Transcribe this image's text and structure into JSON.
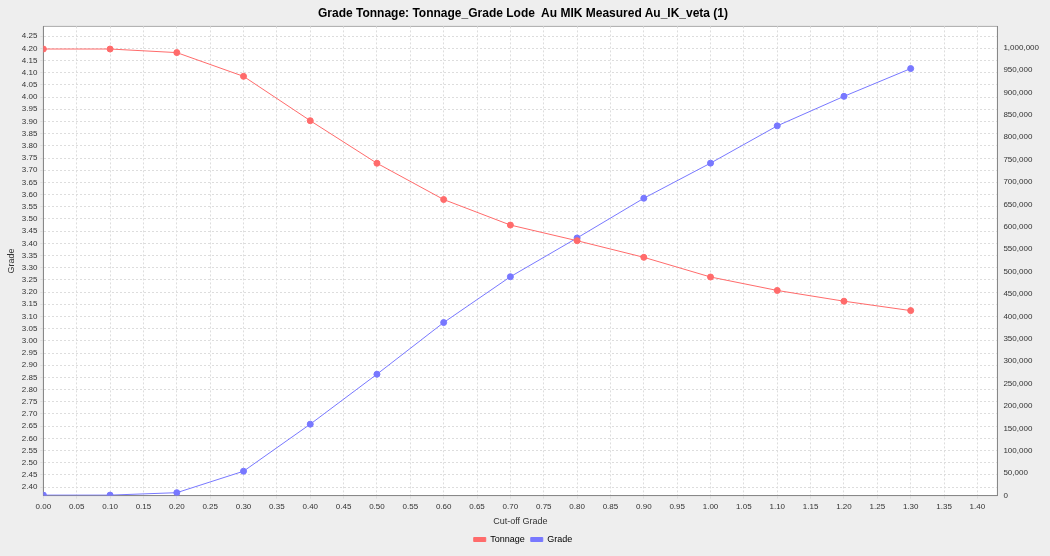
{
  "chart_data": {
    "type": "line",
    "title": "Grade Tonnage: Tonnage_Grade Lode  Au MIK Measured Au_IK_veta (1)",
    "xlabel": "Cut-off Grade",
    "ylabel": "Grade",
    "x": [
      0.0,
      0.1,
      0.2,
      0.3,
      0.4,
      0.5,
      0.6,
      0.7,
      0.8,
      0.9,
      1.0,
      1.1,
      1.2,
      1.3
    ],
    "series": [
      {
        "name": "Tonnage",
        "color": "#ff6b6b",
        "axis": "y2",
        "values": [
          997000,
          997000,
          989000,
          936000,
          837000,
          742000,
          661000,
          604000,
          569000,
          532000,
          488000,
          458000,
          434000,
          413000
        ]
      },
      {
        "name": "Grade",
        "color": "#7878ff",
        "values": [
          2.367,
          2.367,
          2.377,
          2.465,
          2.658,
          2.863,
          3.075,
          3.263,
          3.422,
          3.585,
          3.729,
          3.882,
          4.003,
          4.117
        ]
      }
    ],
    "xlim": [
      0,
      1.43
    ],
    "xticks": [
      {
        "value": 0,
        "label": "0.00"
      },
      {
        "value": 0.05,
        "label": "0.05"
      },
      {
        "value": 0.1,
        "label": "0.10"
      },
      {
        "value": 0.15,
        "label": "0.15"
      },
      {
        "value": 0.2,
        "label": "0.20"
      },
      {
        "value": 0.25,
        "label": "0.25"
      },
      {
        "value": 0.3,
        "label": "0.30"
      },
      {
        "value": 0.35,
        "label": "0.35"
      },
      {
        "value": 0.4,
        "label": "0.40"
      },
      {
        "value": 0.45,
        "label": "0.45"
      },
      {
        "value": 0.5,
        "label": "0.50"
      },
      {
        "value": 0.55,
        "label": "0.55"
      },
      {
        "value": 0.6,
        "label": "0.60"
      },
      {
        "value": 0.65,
        "label": "0.65"
      },
      {
        "value": 0.7,
        "label": "0.70"
      },
      {
        "value": 0.75,
        "label": "0.75"
      },
      {
        "value": 0.8,
        "label": "0.80"
      },
      {
        "value": 0.85,
        "label": "0.85"
      },
      {
        "value": 0.9,
        "label": "0.90"
      },
      {
        "value": 0.95,
        "label": "0.95"
      },
      {
        "value": 1.0,
        "label": "1.00"
      },
      {
        "value": 1.05,
        "label": "1.05"
      },
      {
        "value": 1.1,
        "label": "1.10"
      },
      {
        "value": 1.15,
        "label": "1.15"
      },
      {
        "value": 1.2,
        "label": "1.20"
      },
      {
        "value": 1.25,
        "label": "1.25"
      },
      {
        "value": 1.3,
        "label": "1.30"
      },
      {
        "value": 1.35,
        "label": "1.35"
      },
      {
        "value": 1.4,
        "label": "1.40"
      }
    ],
    "ylim": [
      2.365,
      4.29
    ],
    "yticks": [
      {
        "value": 2.4,
        "label": "2.40"
      },
      {
        "value": 2.45,
        "label": "2.45"
      },
      {
        "value": 2.5,
        "label": "2.50"
      },
      {
        "value": 2.55,
        "label": "2.55"
      },
      {
        "value": 2.6,
        "label": "2.60"
      },
      {
        "value": 2.65,
        "label": "2.65"
      },
      {
        "value": 2.7,
        "label": "2.70"
      },
      {
        "value": 2.75,
        "label": "2.75"
      },
      {
        "value": 2.8,
        "label": "2.80"
      },
      {
        "value": 2.85,
        "label": "2.85"
      },
      {
        "value": 2.9,
        "label": "2.90"
      },
      {
        "value": 2.95,
        "label": "2.95"
      },
      {
        "value": 3.0,
        "label": "3.00"
      },
      {
        "value": 3.05,
        "label": "3.05"
      },
      {
        "value": 3.1,
        "label": "3.10"
      },
      {
        "value": 3.15,
        "label": "3.15"
      },
      {
        "value": 3.2,
        "label": "3.20"
      },
      {
        "value": 3.25,
        "label": "3.25"
      },
      {
        "value": 3.3,
        "label": "3.30"
      },
      {
        "value": 3.35,
        "label": "3.35"
      },
      {
        "value": 3.4,
        "label": "3.40"
      },
      {
        "value": 3.45,
        "label": "3.45"
      },
      {
        "value": 3.5,
        "label": "3.50"
      },
      {
        "value": 3.55,
        "label": "3.55"
      },
      {
        "value": 3.6,
        "label": "3.60"
      },
      {
        "value": 3.65,
        "label": "3.65"
      },
      {
        "value": 3.7,
        "label": "3.70"
      },
      {
        "value": 3.75,
        "label": "3.75"
      },
      {
        "value": 3.8,
        "label": "3.80"
      },
      {
        "value": 3.85,
        "label": "3.85"
      },
      {
        "value": 3.9,
        "label": "3.90"
      },
      {
        "value": 3.95,
        "label": "3.95"
      },
      {
        "value": 4.0,
        "label": "4.00"
      },
      {
        "value": 4.05,
        "label": "4.05"
      },
      {
        "value": 4.1,
        "label": "4.10"
      },
      {
        "value": 4.15,
        "label": "4.15"
      },
      {
        "value": 4.2,
        "label": "4.20"
      },
      {
        "value": 4.25,
        "label": "4.25"
      }
    ],
    "y2lim": [
      0,
      1047500
    ],
    "y2ticks": [
      0,
      {
        "value": 50000,
        "label": "50,000"
      },
      {
        "value": 100000,
        "label": "100,000"
      },
      {
        "value": 150000,
        "label": "150,000"
      },
      {
        "value": 200000,
        "label": "200,000"
      },
      {
        "value": 250000,
        "label": "250,000"
      },
      {
        "value": 300000,
        "label": "300,000"
      },
      {
        "value": 350000,
        "label": "350,000"
      },
      {
        "value": 400000,
        "label": "400,000"
      },
      {
        "value": 450000,
        "label": "450,000"
      },
      {
        "value": 500000,
        "label": "500,000"
      },
      {
        "value": 550000,
        "label": "550,000"
      },
      {
        "value": 600000,
        "label": "600,000"
      },
      {
        "value": 650000,
        "label": "650,000"
      },
      {
        "value": 700000,
        "label": "700,000"
      },
      {
        "value": 750000,
        "label": "750,000"
      },
      {
        "value": 800000,
        "label": "800,000"
      },
      {
        "value": 850000,
        "label": "850,000"
      },
      {
        "value": 900000,
        "label": "900,000"
      },
      {
        "value": 950000,
        "label": "950,000"
      },
      {
        "value": 1000000,
        "label": "1,000,000"
      }
    ],
    "grid": true,
    "legend": "bottom",
    "marker": "circle",
    "line_style": "solid"
  }
}
